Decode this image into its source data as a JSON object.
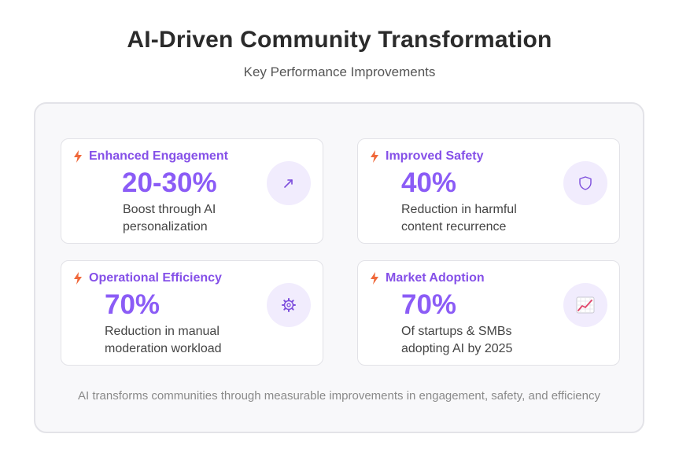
{
  "header": {
    "title": "AI-Driven Community Transformation",
    "subtitle": "Key Performance Improvements"
  },
  "colors": {
    "accent": "#8b5cf6",
    "title_accent": "#8550e8",
    "bolt": "#f0683a",
    "icon_bg": "#f1ecfd",
    "panel_bg": "#f8f8fa"
  },
  "cards": [
    {
      "title": "Enhanced Engagement",
      "metric": "20-30%",
      "desc_line1": "Boost through AI",
      "desc_line2": "personalization",
      "icon": "trend-arrow-icon"
    },
    {
      "title": "Improved Safety",
      "metric": "40%",
      "desc_line1": "Reduction in harmful",
      "desc_line2": "content recurrence",
      "icon": "shield-icon"
    },
    {
      "title": "Operational Efficiency",
      "metric": "70%",
      "desc_line1": "Reduction in manual",
      "desc_line2": "moderation workload",
      "icon": "gear-icon"
    },
    {
      "title": "Market Adoption",
      "metric": "70%",
      "desc_line1": "Of startups & SMBs",
      "desc_line2": "adopting AI by 2025",
      "icon": "chart-increasing-icon"
    }
  ],
  "footer": {
    "note": "AI transforms communities through measurable improvements in engagement, safety, and efficiency"
  }
}
